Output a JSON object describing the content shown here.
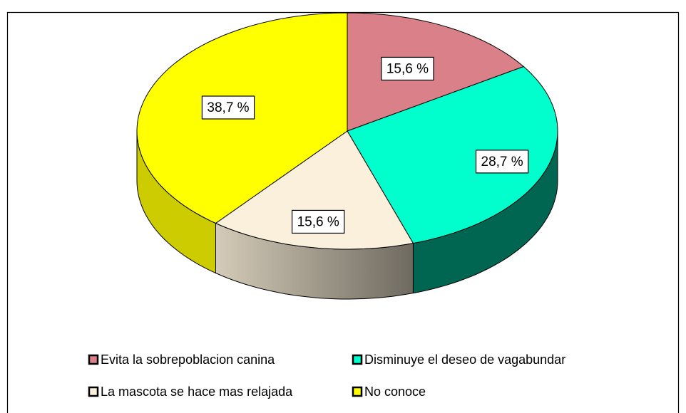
{
  "chart_data": {
    "type": "pie",
    "categories": [
      "Evita la sobrepoblacion canina",
      "Disminuye el deseo de vagabundar",
      "La mascota se hace mas relajada",
      "No conoce"
    ],
    "values": [
      15.6,
      28.7,
      15.6,
      38.7
    ],
    "value_labels": [
      "15,6 %",
      "28,7 %",
      "15,6 %",
      "38,7 %"
    ],
    "colors": [
      "#d98089",
      "#00ffcc",
      "#faf0dc",
      "#ffff00"
    ],
    "legend": "bottom"
  }
}
